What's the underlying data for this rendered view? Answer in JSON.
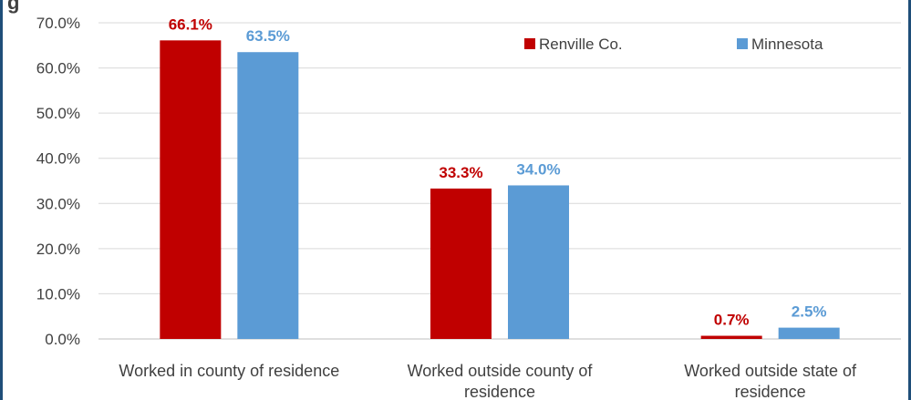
{
  "chart_data": {
    "type": "bar",
    "categories": [
      [
        "Worked in county of residence"
      ],
      [
        "Worked outside county of",
        "residence"
      ],
      [
        "Worked outside state of",
        "residence"
      ]
    ],
    "series": [
      {
        "name": "Renville Co.",
        "color": "#c00000",
        "values": [
          66.1,
          33.3,
          0.7
        ]
      },
      {
        "name": "Minnesota",
        "color": "#5b9bd5",
        "values": [
          63.5,
          34.0,
          2.5
        ]
      }
    ],
    "data_labels": [
      [
        "66.1%",
        "33.3%",
        "0.7%"
      ],
      [
        "63.5%",
        "34.0%",
        "2.5%"
      ]
    ],
    "y_ticks": [
      "0.0%",
      "10.0%",
      "20.0%",
      "30.0%",
      "40.0%",
      "50.0%",
      "60.0%",
      "70.0%"
    ],
    "ylim": [
      0,
      70
    ],
    "grid": true,
    "legend_position": "top-right",
    "gridline_color": "#d9d9d9",
    "title_fragment": "g"
  }
}
